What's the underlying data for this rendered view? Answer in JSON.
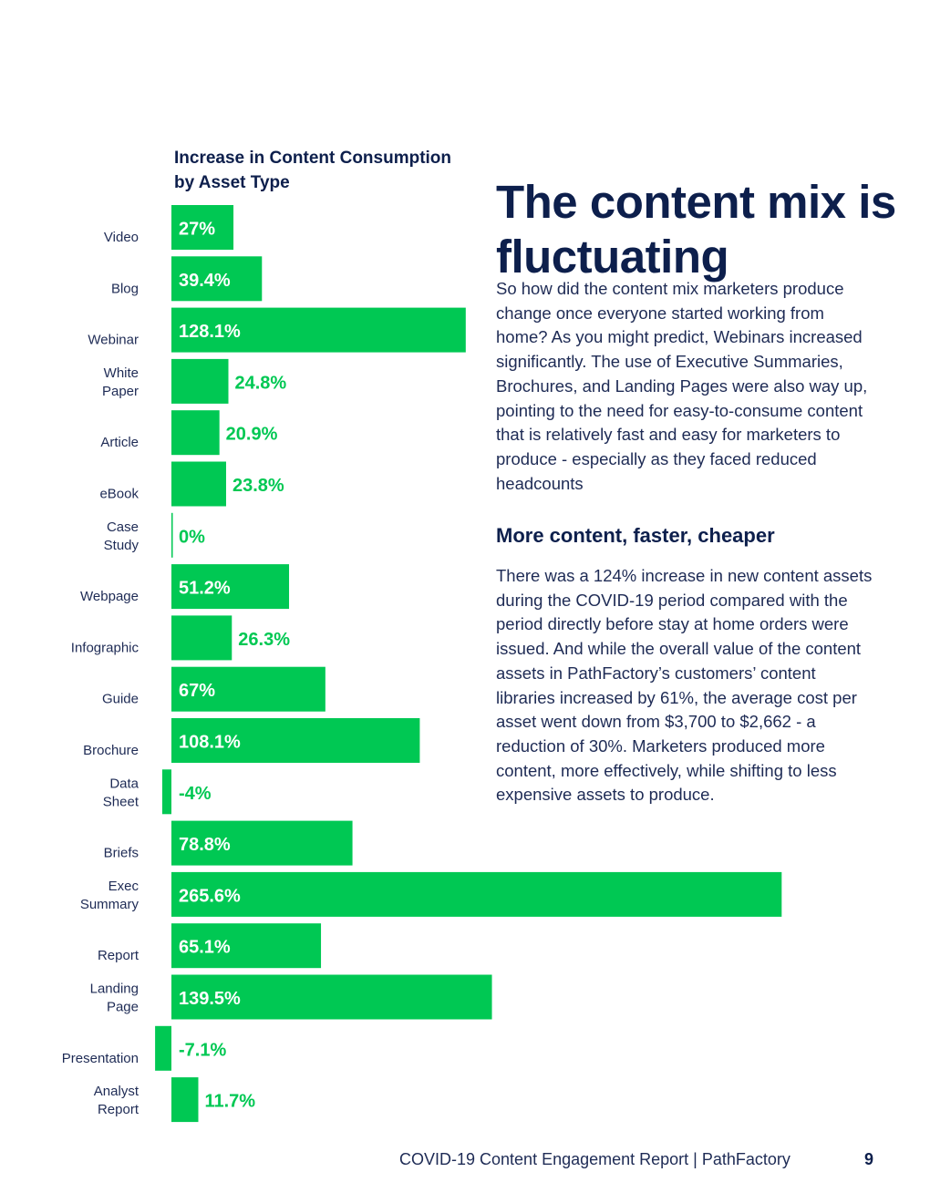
{
  "chart_data": {
    "type": "bar",
    "orientation": "horizontal",
    "title": "Increase in Content Consumption by Asset Type",
    "categories": [
      [
        "Video"
      ],
      [
        "Blog"
      ],
      [
        "Webinar"
      ],
      [
        "White",
        "Paper"
      ],
      [
        "Article"
      ],
      [
        "eBook"
      ],
      [
        "Case",
        "Study"
      ],
      [
        "Webpage"
      ],
      [
        "Infographic"
      ],
      [
        "Guide"
      ],
      [
        "Brochure"
      ],
      [
        "Data",
        "Sheet"
      ],
      [
        "Briefs"
      ],
      [
        "Exec",
        "Summary"
      ],
      [
        "Report"
      ],
      [
        "Landing",
        "Page"
      ],
      [
        "Presentation"
      ],
      [
        "Analyst",
        "Report"
      ]
    ],
    "values": [
      27,
      39.4,
      128.1,
      24.8,
      20.9,
      23.8,
      0,
      51.2,
      26.3,
      67,
      108.1,
      -4,
      78.8,
      265.6,
      65.1,
      139.5,
      -7.1,
      11.7
    ],
    "value_labels": [
      "27%",
      "39.4%",
      "128.1%",
      "24.8%",
      "20.9%",
      "23.8%",
      "0%",
      "51.2%",
      "26.3%",
      "67%",
      "108.1%",
      "-4%",
      "78.8%",
      "265.6%",
      "65.1%",
      "139.5%",
      "-7.1%",
      "11.7%"
    ],
    "unit": "%",
    "xlabel": "",
    "ylabel": "",
    "grid": false,
    "legend": "none"
  },
  "colors": {
    "bar": "#00c853",
    "label_inside": "#ffffff",
    "label_outside": "#00c853",
    "heading": "#0d1f4c",
    "body_text": "#1e2b55"
  },
  "article": {
    "headline": "The content mix is fluctuating",
    "paragraph1": "So how did the content mix marketers produce change once everyone started working from home? As you might predict, Webinars increased significantly. The use of Executive Summaries, Brochures, and Landing Pages were also way up, pointing to the need for easy-to-consume content that is relatively fast and easy for marketers to produce - especially as they faced reduced headcounts",
    "subheading": "More content, faster, cheaper",
    "paragraph2": "There was a 124% increase in new content assets during the COVID-19 period compared with the period directly before stay at home orders were issued. And while the overall value of the content assets in PathFactory’s customers’ content libraries increased by 61%, the average cost per asset went down from $3,700 to $2,662 - a reduction of 30%. Marketers produced more content, more effectively, while shifting to less expensive assets to produce."
  },
  "footer": {
    "text": "COVID-19 Content Engagement Report  |  PathFactory",
    "page_number": "9"
  }
}
